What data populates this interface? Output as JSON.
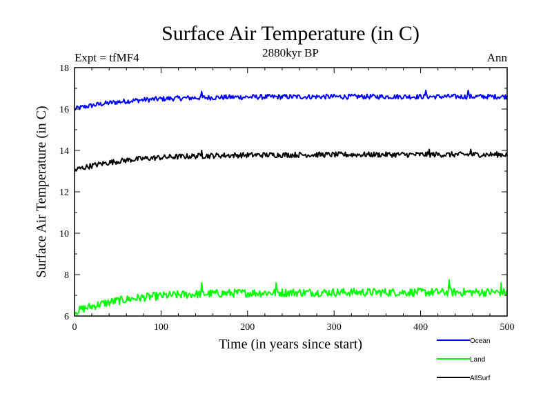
{
  "chart_data": {
    "type": "line",
    "title": "Surface Air Temperature (in C)",
    "subtitle": "2880kyr BP",
    "left_label": "Expt = tfMF4",
    "right_label": "Ann",
    "xlabel": "Time (in years since start)",
    "ylabel": "Surface Air Temperature (in C)",
    "xlim": [
      0,
      500
    ],
    "ylim": [
      6,
      18
    ],
    "xticks": [
      0,
      100,
      200,
      300,
      400,
      500
    ],
    "yticks": [
      6,
      8,
      10,
      12,
      14,
      16,
      18
    ],
    "grid": false,
    "legend_position": "bottom-right",
    "series": [
      {
        "name": "Ocean",
        "color": "#0000ff",
        "start": 16.0,
        "mean": 16.6,
        "noise": 0.12,
        "peaks": [
          {
            "x": 147,
            "y": 16.85
          },
          {
            "x": 406,
            "y": 16.9
          },
          {
            "x": 455,
            "y": 16.9
          }
        ]
      },
      {
        "name": "Land",
        "color": "#00ff00",
        "start": 6.2,
        "mean": 7.15,
        "noise": 0.2,
        "peaks": [
          {
            "x": 147,
            "y": 7.6
          },
          {
            "x": 233,
            "y": 7.6
          },
          {
            "x": 433,
            "y": 7.75
          },
          {
            "x": 493,
            "y": 7.6
          }
        ]
      },
      {
        "name": "AllSurf",
        "color": "#000000",
        "start": 13.05,
        "mean": 13.8,
        "noise": 0.13,
        "peaks": [
          {
            "x": 147,
            "y": 14.0
          },
          {
            "x": 410,
            "y": 14.05
          },
          {
            "x": 458,
            "y": 14.05
          }
        ]
      }
    ]
  }
}
